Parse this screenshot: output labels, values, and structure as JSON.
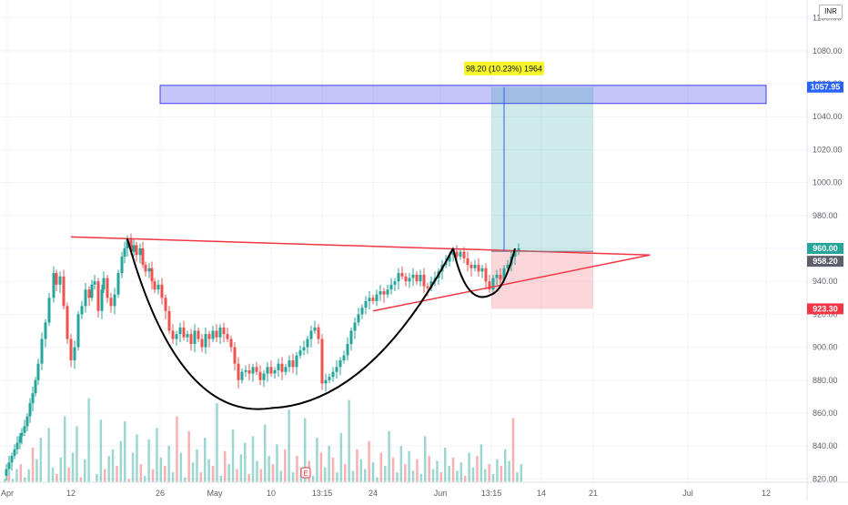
{
  "currency": "INR",
  "measure_label": "98.20 (10.23%) 1964",
  "price_tags": {
    "target": "1057.95",
    "last": "960.00",
    "entry": "958.20",
    "stop": "923.30"
  },
  "colors": {
    "up": "#26a69a",
    "down": "#ef5350",
    "resistance_zone": "#3f3ff5",
    "profit_zone": "#26a69a",
    "loss_zone": "#f23645",
    "trendline": "#f23645",
    "pattern_curve": "#000000",
    "measure_label_bg": "#f5f52a",
    "target_tag": "#2962ff",
    "last_tag": "#26a69a",
    "entry_tag": "#5d606b",
    "stop_tag": "#f23645"
  },
  "events": [
    {
      "label": "E",
      "x": "13:15"
    }
  ],
  "chart_data": {
    "type": "candlestick",
    "x_ticks": [
      "Apr",
      "12",
      "26",
      "May",
      "10",
      "13:15",
      "24",
      "Jun",
      "13:15",
      "14",
      "21",
      "Jul",
      "12"
    ],
    "y_ticks": [
      820,
      840,
      860,
      880,
      900,
      920,
      940,
      960,
      980,
      1000,
      1020,
      1040,
      1060,
      1080,
      1100
    ],
    "ylim": [
      818,
      1102
    ],
    "close_series": [
      [
        0,
        822
      ],
      [
        3,
        826
      ],
      [
        6,
        830
      ],
      [
        9,
        834
      ],
      [
        12,
        838
      ],
      [
        15,
        842
      ],
      [
        18,
        846
      ],
      [
        20,
        848
      ],
      [
        23,
        852
      ],
      [
        26,
        858
      ],
      [
        29,
        866
      ],
      [
        32,
        872
      ],
      [
        35,
        880
      ],
      [
        38,
        890
      ],
      [
        42,
        905
      ],
      [
        46,
        915
      ],
      [
        50,
        930
      ],
      [
        55,
        945
      ],
      [
        58,
        938
      ],
      [
        62,
        943
      ],
      [
        66,
        925
      ],
      [
        70,
        905
      ],
      [
        74,
        892
      ],
      [
        78,
        900
      ],
      [
        82,
        920
      ],
      [
        86,
        925
      ],
      [
        90,
        935
      ],
      [
        94,
        930
      ],
      [
        97,
        938
      ],
      [
        100,
        940
      ],
      [
        104,
        922
      ],
      [
        108,
        935
      ],
      [
        110,
        942
      ],
      [
        114,
        930
      ],
      [
        118,
        925
      ],
      [
        122,
        932
      ],
      [
        126,
        945
      ],
      [
        130,
        955
      ],
      [
        133,
        960
      ],
      [
        136,
        966
      ],
      [
        140,
        958
      ],
      [
        143,
        962
      ],
      [
        146,
        956
      ],
      [
        150,
        960
      ],
      [
        153,
        950
      ],
      [
        156,
        946
      ],
      [
        160,
        948
      ],
      [
        163,
        940
      ],
      [
        166,
        935
      ],
      [
        170,
        938
      ],
      [
        174,
        930
      ],
      [
        178,
        922
      ],
      [
        182,
        910
      ],
      [
        186,
        905
      ],
      [
        190,
        908
      ],
      [
        194,
        912
      ],
      [
        198,
        906
      ],
      [
        202,
        908
      ],
      [
        206,
        902
      ],
      [
        210,
        910
      ],
      [
        214,
        905
      ],
      [
        218,
        900
      ],
      [
        222,
        908
      ],
      [
        226,
        905
      ],
      [
        230,
        910
      ],
      [
        234,
        906
      ],
      [
        238,
        912
      ],
      [
        242,
        908
      ],
      [
        246,
        905
      ],
      [
        250,
        900
      ],
      [
        254,
        890
      ],
      [
        258,
        880
      ],
      [
        262,
        885
      ],
      [
        266,
        886
      ],
      [
        270,
        884
      ],
      [
        274,
        888
      ],
      [
        278,
        885
      ],
      [
        282,
        880
      ],
      [
        286,
        884
      ],
      [
        290,
        888
      ],
      [
        294,
        884
      ],
      [
        298,
        886
      ],
      [
        302,
        890
      ],
      [
        306,
        885
      ],
      [
        310,
        888
      ],
      [
        314,
        892
      ],
      [
        318,
        888
      ],
      [
        322,
        895
      ],
      [
        326,
        898
      ],
      [
        330,
        900
      ],
      [
        334,
        905
      ],
      [
        338,
        910
      ],
      [
        342,
        912
      ],
      [
        346,
        905
      ],
      [
        350,
        878
      ],
      [
        354,
        880
      ],
      [
        358,
        882
      ],
      [
        362,
        885
      ],
      [
        366,
        888
      ],
      [
        370,
        892
      ],
      [
        374,
        895
      ],
      [
        378,
        902
      ],
      [
        382,
        910
      ],
      [
        386,
        915
      ],
      [
        390,
        920
      ],
      [
        394,
        924
      ],
      [
        398,
        928
      ],
      [
        402,
        930
      ],
      [
        406,
        928
      ],
      [
        410,
        932
      ],
      [
        414,
        934
      ],
      [
        418,
        932
      ],
      [
        422,
        935
      ],
      [
        426,
        938
      ],
      [
        430,
        940
      ],
      [
        434,
        945
      ],
      [
        438,
        943
      ],
      [
        442,
        940
      ],
      [
        446,
        942
      ],
      [
        450,
        944
      ],
      [
        454,
        940
      ],
      [
        458,
        944
      ],
      [
        462,
        937
      ],
      [
        466,
        936
      ],
      [
        470,
        940
      ],
      [
        474,
        942
      ],
      [
        478,
        946
      ],
      [
        482,
        950
      ],
      [
        486,
        952
      ],
      [
        490,
        956
      ],
      [
        494,
        958
      ],
      [
        498,
        955
      ],
      [
        502,
        958
      ],
      [
        506,
        954
      ],
      [
        510,
        950
      ],
      [
        514,
        948
      ],
      [
        518,
        950
      ],
      [
        522,
        946
      ],
      [
        526,
        948
      ],
      [
        530,
        940
      ],
      [
        534,
        935
      ],
      [
        538,
        942
      ],
      [
        542,
        944
      ],
      [
        546,
        941
      ],
      [
        550,
        948
      ],
      [
        554,
        950
      ],
      [
        558,
        955
      ],
      [
        562,
        958
      ],
      [
        566,
        960
      ]
    ],
    "volume_series": [
      820,
      822,
      820,
      826,
      829,
      821,
      826,
      839,
      832,
      845,
      818,
      851,
      827,
      823,
      833,
      858,
      827,
      836,
      852,
      821,
      832,
      869,
      818,
      823,
      856,
      826,
      834,
      838,
      828,
      843,
      855,
      820,
      836,
      847,
      829,
      822,
      844,
      826,
      851,
      833,
      828,
      840,
      824,
      858,
      836,
      821,
      849,
      830,
      838,
      824,
      845,
      832,
      828,
      866,
      822,
      837,
      829,
      850,
      826,
      835,
      842,
      823,
      846,
      831,
      826,
      853,
      834,
      829,
      841,
      825,
      838,
      862,
      824,
      834,
      827,
      857,
      831,
      822,
      845,
      836,
      827,
      840,
      833,
      824,
      848,
      829,
      868,
      825,
      838,
      832,
      826,
      843,
      830,
      821,
      836,
      828,
      849,
      833,
      824,
      840,
      829,
      837,
      825,
      832,
      823,
      846,
      834,
      826,
      831,
      824,
      839,
      828,
      833,
      825,
      830,
      822,
      836,
      827,
      834,
      841,
      826,
      829,
      823,
      832,
      828,
      838,
      831,
      857,
      824,
      829
    ],
    "drawings": {
      "resistance_zone": {
        "x": [
          "Apr 26",
          "Jul 12"
        ],
        "y": [
          1048,
          1059
        ]
      },
      "profit_zone": {
        "x": [
          "Jun 13:15",
          "Jun 21"
        ],
        "y": [
          958.2,
          1057.95
        ]
      },
      "loss_zone": {
        "x": [
          "Jun 13:15",
          "Jun 21"
        ],
        "y": [
          923.3,
          958.2
        ]
      },
      "descending_trendline": {
        "from": [
          "Apr 12",
          967
        ],
        "to": [
          "Jun 28",
          956
        ]
      },
      "ascending_trendline": {
        "from": [
          "May 24",
          922
        ],
        "to": [
          "Jun 28",
          956
        ]
      },
      "cup_curve": {
        "from": [
          "Apr 26",
          966
        ],
        "bottom": [
          "May 10",
          863
        ],
        "to": [
          "Jun",
          960
        ]
      },
      "handle_curve": {
        "from": [
          "Jun",
          960
        ],
        "bottom": [
          "Jun",
          932
        ],
        "to": [
          "Jun 13:15",
          960
        ]
      }
    }
  }
}
